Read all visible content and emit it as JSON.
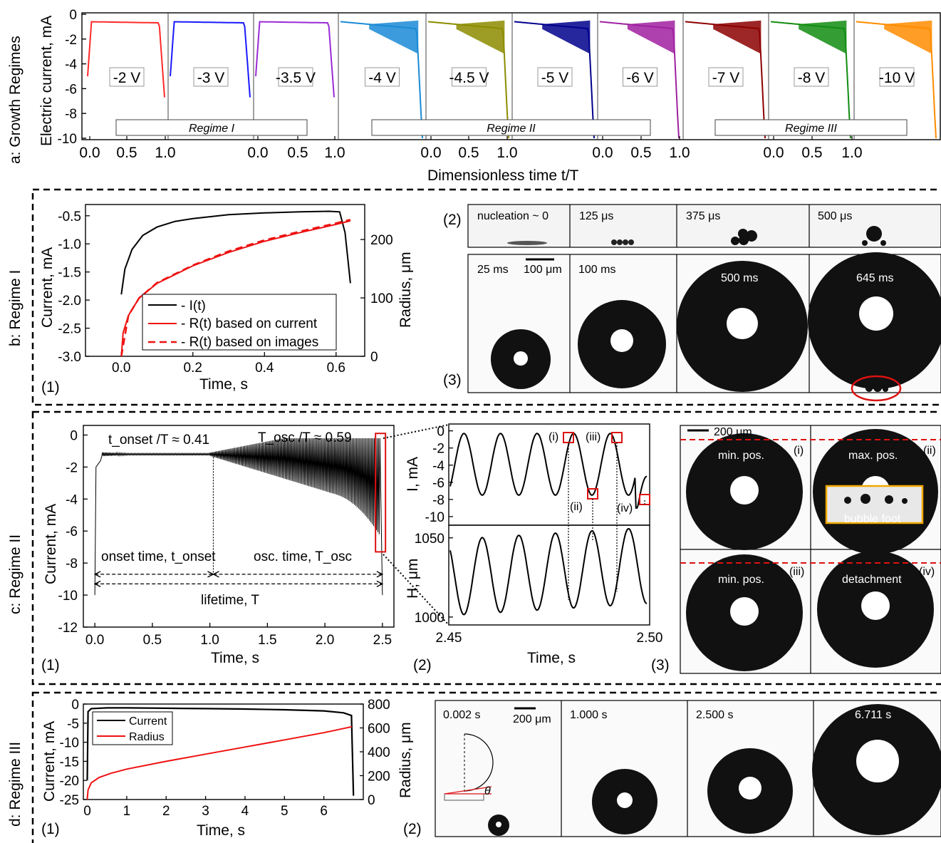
{
  "panel_a": {
    "side_label": "a: Growth Regimes",
    "ylabel": "Electric current, mA",
    "xlabel": "Dimensionless time t/T",
    "yticks": [
      "0",
      "-2",
      "-4",
      "-6",
      "-8",
      "-10"
    ],
    "xticks": [
      "0.0",
      "0.5",
      "1.0"
    ],
    "voltages": [
      "-2 V",
      "-3 V",
      "-3.5 V",
      "-4 V",
      "-4.5 V",
      "-5 V",
      "-6 V",
      "-7 V",
      "-8 V",
      "-10 V"
    ],
    "colors": [
      "#ff2a2a",
      "#1a1aff",
      "#9b2ad6",
      "#1a8ad6",
      "#8c8c00",
      "#00008c",
      "#a020a0",
      "#8c0000",
      "#108c10",
      "#ff8c00"
    ],
    "regimes": [
      "Regime I",
      "Regime II",
      "Regime III"
    ]
  },
  "panel_b": {
    "side_label": "b: Regime I",
    "sub1": "(1)",
    "sub2": "(2)",
    "sub3": "(3)",
    "ylabel": "Current, mA",
    "ylabel2": "Radius, μm",
    "xlabel": "Time, s",
    "legend": [
      "- I(t)",
      "- R(t) based on current",
      "- R(t) based on images"
    ],
    "frames_top": [
      "nucleation ~ 0",
      "125 μs",
      "375 μs",
      "500 μs"
    ],
    "frames_bottom": [
      "25 ms",
      "100 ms",
      "500 ms",
      "645 ms"
    ],
    "scale": "100 μm"
  },
  "panel_c": {
    "side_label": "c: Regime II",
    "sub1": "(1)",
    "sub2": "(2)",
    "sub3": "(3)",
    "ylabel": "Current, mA",
    "xlabel": "Time, s",
    "onset_ratio": "t_onset /T ≈ 0.41",
    "osc_ratio": "T_osc /T ≈ 0.59",
    "onset_label": "onset time, t_onset",
    "osc_label": "osc. time, T_osc",
    "lifetime_label": "lifetime, T",
    "zoom_ylabel_top": "I, mA",
    "zoom_ylabel_bot": "H, μm",
    "zoom_xlabel": "Time, s",
    "markers": [
      "(i)",
      "(ii)",
      "(iii)",
      "(iv)"
    ],
    "img_labels": [
      "min. pos.",
      "max. pos.",
      "min. pos.",
      "detachment"
    ],
    "bubble_foot": "bubble foot",
    "scale": "200 μm"
  },
  "panel_d": {
    "side_label": "d: Regime III",
    "sub1": "(1)",
    "sub2": "(2)",
    "ylabel": "Current, mA",
    "ylabel2": "Radius, μm",
    "xlabel": "Time, s",
    "legend": [
      "Current",
      "Radius"
    ],
    "frames": [
      "0.002 s",
      "1.000 s",
      "2.500 s",
      "6.711 s"
    ],
    "scale": "200 μm",
    "theta": "θ"
  },
  "chart_data": [
    {
      "type": "line",
      "id": "a",
      "xlabel": "Dimensionless time t/T",
      "ylabel": "Electric current, mA",
      "ylim": [
        -10,
        0
      ],
      "xlim": [
        0,
        1
      ],
      "series_names": [
        "-2 V",
        "-3 V",
        "-3.5 V",
        "-4 V",
        "-4.5 V",
        "-5 V",
        "-6 V",
        "-7 V",
        "-8 V",
        "-10 V"
      ],
      "regime_groups": [
        [
          "-2 V",
          "-3 V",
          "-3.5 V"
        ],
        [
          "-4 V",
          "-4.5 V",
          "-5 V",
          "-6 V"
        ],
        [
          "-7 V",
          "-8 V",
          "-10 V"
        ]
      ]
    },
    {
      "type": "line",
      "id": "b1",
      "xlabel": "Time, s",
      "ylabel": "Current, mA",
      "ylabel2": "Radius, μm",
      "xlim": [
        -0.1,
        0.68
      ],
      "ylim": [
        -3.0,
        -0.3
      ],
      "ylim2": [
        0,
        260
      ],
      "xticks": [
        0.0,
        0.2,
        0.4,
        0.6
      ],
      "yticks": [
        -0.5,
        -1.0,
        -1.5,
        -2.0,
        -2.5,
        -3.0
      ],
      "yticks2": [
        0,
        100,
        200
      ],
      "series": [
        {
          "name": "I(t)",
          "x": [
            0.0,
            0.01,
            0.03,
            0.06,
            0.1,
            0.15,
            0.2,
            0.3,
            0.4,
            0.5,
            0.58,
            0.61,
            0.625,
            0.64
          ],
          "y": [
            -1.9,
            -1.45,
            -1.1,
            -0.85,
            -0.7,
            -0.6,
            -0.55,
            -0.48,
            -0.45,
            -0.43,
            -0.42,
            -0.43,
            -0.8,
            -1.7
          ]
        },
        {
          "name": "R(t) based on current",
          "x": [
            0.0,
            0.005,
            0.02,
            0.05,
            0.1,
            0.2,
            0.3,
            0.4,
            0.5,
            0.6,
            0.64
          ],
          "y": [
            0,
            40,
            70,
            100,
            125,
            155,
            178,
            197,
            212,
            226,
            232
          ]
        },
        {
          "name": "R(t) based on images",
          "x": [
            0.0,
            0.02,
            0.05,
            0.1,
            0.2,
            0.3,
            0.4,
            0.5,
            0.6,
            0.64
          ],
          "y": [
            0,
            70,
            100,
            126,
            156,
            180,
            199,
            214,
            228,
            234
          ]
        }
      ]
    },
    {
      "type": "line",
      "id": "c1",
      "xlabel": "Time, s",
      "ylabel": "Current, mA",
      "xlim": [
        -0.1,
        2.6
      ],
      "ylim": [
        -12,
        0.6
      ],
      "xticks": [
        0.0,
        0.5,
        1.0,
        1.5,
        2.0,
        2.5
      ],
      "yticks": [
        0,
        -2,
        -4,
        -6,
        -8,
        -10,
        -12
      ],
      "onset_time": 1.03,
      "lifetime": 2.5
    },
    {
      "type": "line",
      "id": "c2",
      "xlabel": "Time, s",
      "xlim": [
        2.45,
        2.5
      ],
      "ylim_top": [
        -11,
        0.8
      ],
      "yticks_top": [
        0,
        -2,
        -4,
        -6,
        -8,
        -10
      ],
      "ylim_bot": [
        995,
        1058
      ],
      "yticks_bot": [
        1000,
        1050
      ],
      "xticks": [
        2.45,
        2.5
      ]
    },
    {
      "type": "line",
      "id": "d1",
      "xlabel": "Time, s",
      "ylabel": "Current, mA",
      "ylabel2": "Radius, μm",
      "xlim": [
        -0.1,
        7.0
      ],
      "ylim": [
        -25,
        0
      ],
      "ylim2": [
        0,
        800
      ],
      "xticks": [
        0,
        1,
        2,
        3,
        4,
        5,
        6
      ],
      "yticks": [
        0,
        -5,
        -10,
        -15,
        -20,
        -25
      ],
      "yticks2": [
        0,
        200,
        400,
        600,
        800
      ],
      "series": [
        {
          "name": "Current",
          "x": [
            0.0,
            0.02,
            0.1,
            0.5,
            1,
            2,
            3,
            4,
            5,
            6,
            6.5,
            6.7,
            6.75
          ],
          "y": [
            -20,
            -2,
            -1.2,
            -1.0,
            -1.0,
            -1.1,
            -1.2,
            -1.3,
            -1.5,
            -1.8,
            -2.3,
            -3.0,
            -24
          ]
        },
        {
          "name": "Radius",
          "x": [
            0.0,
            0.02,
            0.1,
            0.3,
            0.6,
            1,
            2,
            3,
            4,
            5,
            6,
            6.71
          ],
          "y": [
            0,
            80,
            140,
            185,
            220,
            255,
            320,
            380,
            440,
            500,
            560,
            610
          ]
        }
      ]
    }
  ]
}
